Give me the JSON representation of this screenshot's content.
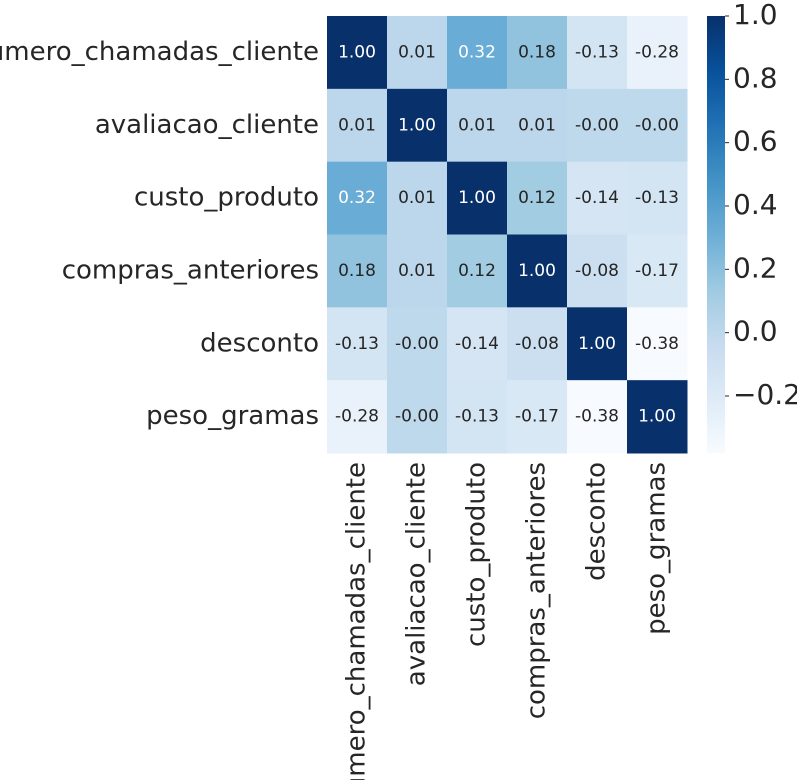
{
  "chart_data": {
    "type": "heatmap",
    "x_categories": [
      "numero_chamadas_cliente",
      "avaliacao_cliente",
      "custo_produto",
      "compras_anteriores",
      "desconto",
      "peso_gramas"
    ],
    "y_categories": [
      "numero_chamadas_cliente",
      "avaliacao_cliente",
      "custo_produto",
      "compras_anteriores",
      "desconto",
      "peso_gramas"
    ],
    "values": [
      [
        1.0,
        0.01,
        0.32,
        0.18,
        -0.13,
        -0.28
      ],
      [
        0.01,
        1.0,
        0.01,
        0.01,
        0,
        0
      ],
      [
        0.32,
        0.01,
        1.0,
        0.12,
        -0.14,
        -0.13
      ],
      [
        0.18,
        0.01,
        0.12,
        1.0,
        -0.08,
        -0.17
      ],
      [
        -0.13,
        0,
        -0.14,
        -0.08,
        1.0,
        -0.38
      ],
      [
        -0.28,
        0,
        -0.13,
        -0.17,
        -0.38,
        1.0
      ]
    ],
    "value_labels": [
      [
        "1.00",
        "0.01",
        "0.32",
        "0.18",
        "-0.13",
        "-0.28"
      ],
      [
        "0.01",
        "1.00",
        "0.01",
        "0.01",
        "-0.00",
        "-0.00"
      ],
      [
        "0.32",
        "0.01",
        "1.00",
        "0.12",
        "-0.14",
        "-0.13"
      ],
      [
        "0.18",
        "0.01",
        "0.12",
        "1.00",
        "-0.08",
        "-0.17"
      ],
      [
        "-0.13",
        "-0.00",
        "-0.14",
        "-0.08",
        "1.00",
        "-0.38"
      ],
      [
        "-0.28",
        "-0.00",
        "-0.13",
        "-0.17",
        "-0.38",
        "1.00"
      ]
    ],
    "clim": [
      -0.38,
      1.0
    ],
    "cticks": [
      {
        "value": -0.2,
        "label": "−0.2"
      },
      {
        "value": 0,
        "label": "0.0"
      },
      0.2,
      0.4,
      0.6,
      0.8,
      {
        "value": 1,
        "label": "1.0"
      }
    ],
    "colormap": [
      "#f7fbff",
      "#deebf7",
      "#c6dbef",
      "#9ecae1",
      "#6baed6",
      "#4292c6",
      "#2171b5",
      "#08519c",
      "#08306b"
    ]
  }
}
